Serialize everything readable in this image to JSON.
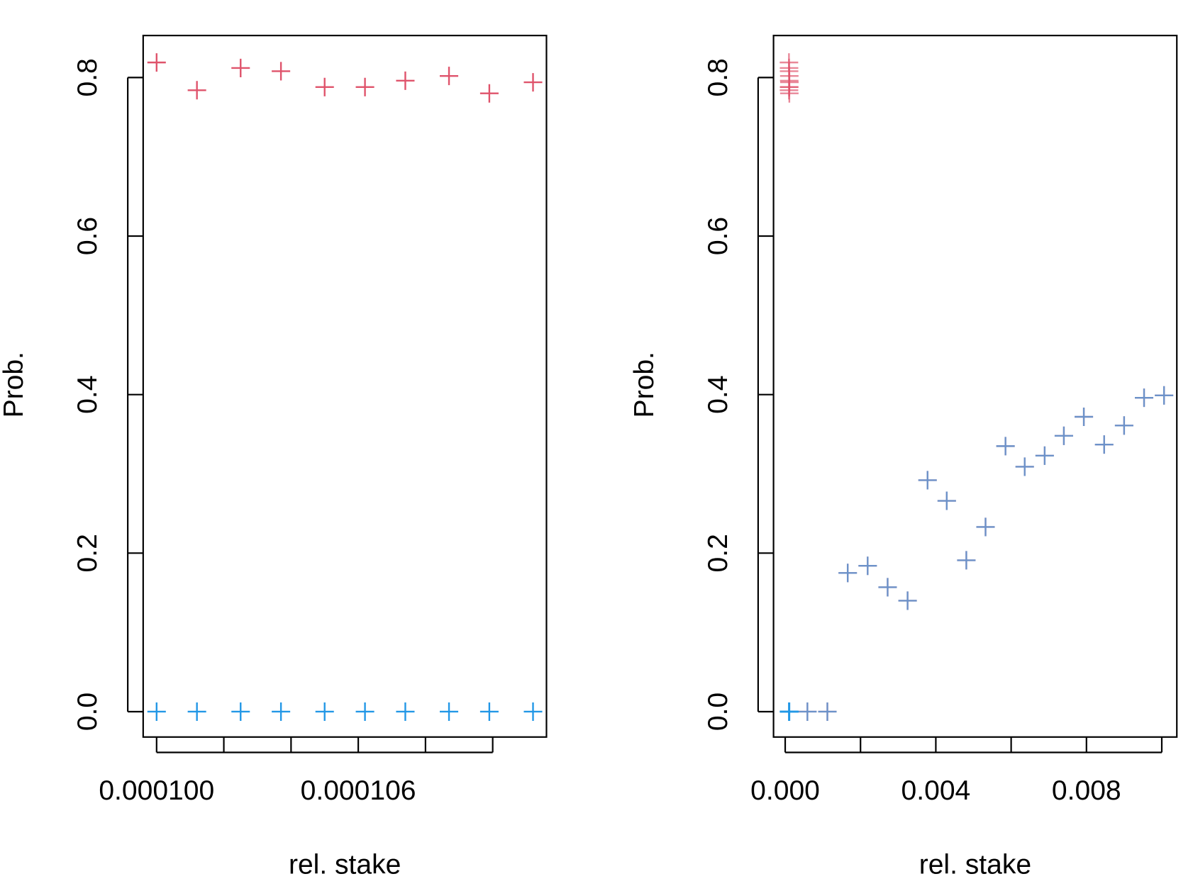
{
  "chart_data": [
    {
      "type": "scatter",
      "xlabel": "rel. stake",
      "ylabel": "Prob.",
      "xlim": [
        9.96e-05,
        0.0001116
      ],
      "ylim": [
        -0.032,
        0.853
      ],
      "xticks": [
        {
          "value": 0.0001,
          "label": "0.000100"
        },
        {
          "value": 0.000102,
          "label": null
        },
        {
          "value": 0.000104,
          "label": null
        },
        {
          "value": 0.000106,
          "label": "0.000106"
        },
        {
          "value": 0.000108,
          "label": null
        },
        {
          "value": 0.00011,
          "label": null
        }
      ],
      "yticks": [
        {
          "value": 0,
          "label": "0.0"
        },
        0.2,
        0.4,
        0.6,
        0.8
      ],
      "series": [
        {
          "color": "#df536b",
          "x": [
            0.0001,
            0.0001012,
            0.0001025,
            0.0001037,
            0.000105,
            0.0001062,
            0.0001074,
            0.0001087,
            0.0001099,
            0.0001112
          ],
          "values": [
            0.819,
            0.784,
            0.812,
            0.808,
            0.788,
            0.788,
            0.796,
            0.802,
            0.78,
            0.794
          ]
        },
        {
          "color": "#2297e6",
          "x": [
            0.0001,
            0.0001012,
            0.0001025,
            0.0001037,
            0.000105,
            0.0001062,
            0.0001074,
            0.0001087,
            0.0001099,
            0.0001112
          ],
          "values": [
            0,
            0,
            0,
            0,
            0,
            0,
            0,
            0,
            0,
            0
          ]
        }
      ]
    },
    {
      "type": "scatter",
      "xlabel": "rel. stake",
      "ylabel": "Prob.",
      "xlim": [
        -0.00031,
        0.0104
      ],
      "ylim": [
        -0.032,
        0.853
      ],
      "xticks": [
        {
          "value": 0,
          "label": "0.000"
        },
        {
          "value": 0.002,
          "label": null
        },
        {
          "value": 0.004,
          "label": "0.004"
        },
        {
          "value": 0.006,
          "label": null
        },
        {
          "value": 0.008,
          "label": "0.008"
        },
        {
          "value": 0.01,
          "label": null
        }
      ],
      "yticks": [
        {
          "value": 0,
          "label": "0.0"
        },
        0.2,
        0.4,
        0.6,
        0.8
      ],
      "series": [
        {
          "color": "#df536bb0",
          "x": [
            0.0001,
            0.0001012,
            0.0001025,
            0.0001037,
            0.000105,
            0.0001062,
            0.0001074,
            0.0001087,
            0.0001099,
            0.0001112,
            0.00059,
            0.00112,
            0.00166,
            0.00219,
            0.00272,
            0.00325,
            0.00378,
            0.00429,
            0.00481,
            0.00532,
            0.00585,
            0.00636,
            0.00689,
            0.0074,
            0.00793,
            0.00847,
            0.009,
            0.00953,
            0.01006
          ],
          "values": [
            0.819,
            0.784,
            0.812,
            0.808,
            0.788,
            0.788,
            0.796,
            0.802,
            0.78,
            0.794,
            0,
            0,
            0.175,
            0.184,
            0.157,
            0.14,
            0.292,
            0.266,
            0.191,
            0.233,
            0.335,
            0.309,
            0.323,
            0.348,
            0.372,
            0.337,
            0.361,
            0.396,
            0.399
          ]
        },
        {
          "color": "#2297e6a0",
          "x": [
            0.0001,
            0.0001012,
            0.0001025,
            0.0001037,
            0.000105,
            0.0001062,
            0.0001074,
            0.0001087,
            0.0001099,
            0.0001112,
            0.00059,
            0.00112,
            0.00166,
            0.00219,
            0.00272,
            0.00325,
            0.00378,
            0.00429,
            0.00481,
            0.00532,
            0.00585,
            0.00636,
            0.00689,
            0.0074,
            0.00793,
            0.00847,
            0.009,
            0.00953,
            0.01006
          ],
          "values": [
            0,
            0,
            0,
            0,
            0,
            0,
            0,
            0,
            0,
            0,
            0,
            0,
            0.175,
            0.184,
            0.157,
            0.14,
            0.292,
            0.266,
            0.191,
            0.233,
            0.335,
            0.309,
            0.323,
            0.348,
            0.372,
            0.337,
            0.361,
            0.396,
            0.399
          ]
        }
      ]
    }
  ]
}
